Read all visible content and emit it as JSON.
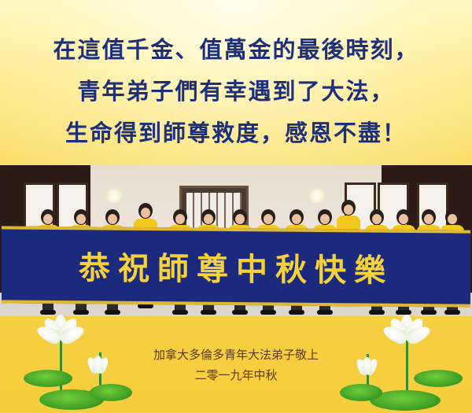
{
  "headline": {
    "line1": "在這值千金、值萬金的最後時刻，",
    "line2": "青年弟子們有幸遇到了大法，",
    "line3": "生命得到師尊救度，感恩不盡！"
  },
  "banner": {
    "text": "恭祝師尊中秋快樂"
  },
  "signature": {
    "line1": "加拿大多倫多青年大法弟子敬上",
    "line2": "二零一九年中秋"
  },
  "colors": {
    "headline": "#1e2f7a",
    "banner_bg": "#1b2a7c",
    "banner_text": "#f6d23a",
    "background": "#f7d24a",
    "shirts": "#f2c81e"
  },
  "icons": [
    "lotus-flower-icon"
  ]
}
